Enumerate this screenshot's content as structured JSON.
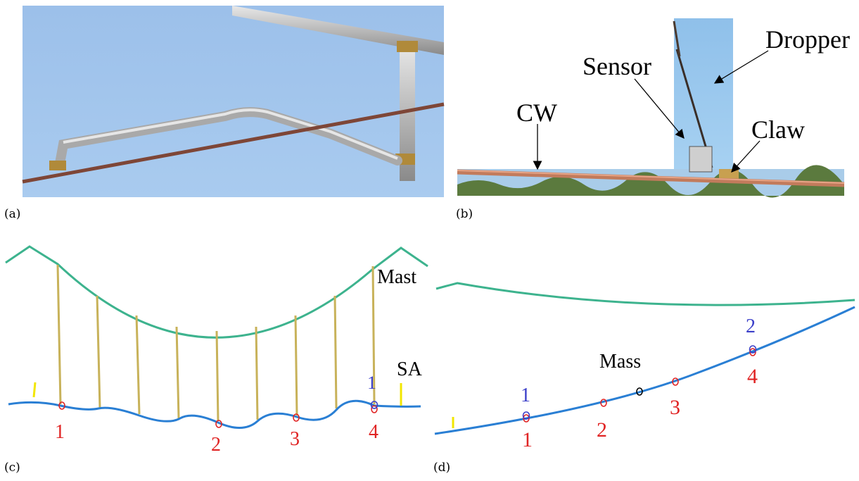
{
  "panels": {
    "a": {
      "caption": "(a)"
    },
    "b": {
      "caption": "(b)",
      "labels": {
        "dropper": "Dropper",
        "sensor": "Sensor",
        "cw": "CW",
        "claw": "Claw"
      }
    },
    "c": {
      "caption": "(c)",
      "labels": {
        "mast": "Mast",
        "sa": "SA"
      },
      "red_points": [
        "1",
        "2",
        "3",
        "4"
      ],
      "blue_points": [
        "1"
      ]
    },
    "d": {
      "caption": "(d)",
      "labels": {
        "mass": "Mass"
      },
      "red_points": [
        "1",
        "2",
        "3",
        "4"
      ],
      "blue_points": [
        "1",
        "2"
      ],
      "marker_glyph": "o"
    }
  },
  "colors": {
    "sky": "#9fc4ea",
    "messenger_wire": "#3db38e",
    "contact_wire": "#2a7fd4",
    "dropper": "#c8b25a",
    "red_marker": "#e02424",
    "blue_marker": "#3b3fc9",
    "yellow_marker": "#f2e600",
    "copper_wire": "#8a4b3a"
  }
}
